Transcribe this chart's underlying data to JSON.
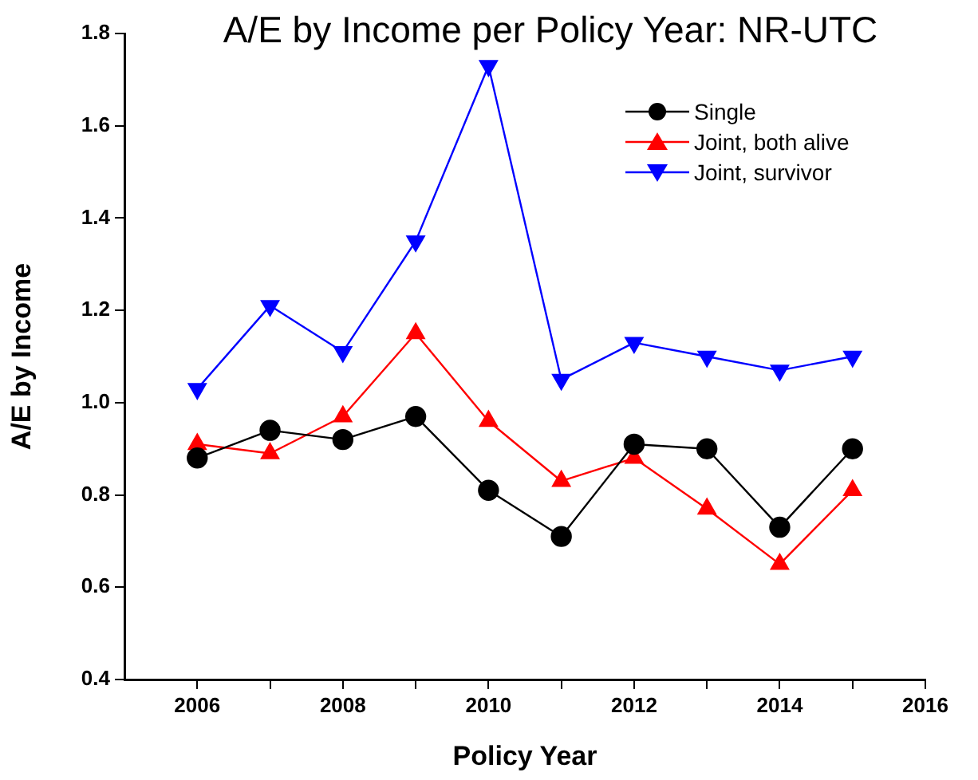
{
  "chart_data": {
    "type": "line",
    "title": "A/E by Income per Policy Year: NR-UTC",
    "xlabel": "Policy Year",
    "ylabel": "A/E by Income",
    "x": [
      2006,
      2007,
      2008,
      2009,
      2010,
      2011,
      2012,
      2013,
      2014,
      2015
    ],
    "series": [
      {
        "name": "Single",
        "color": "#000000",
        "marker": "circle",
        "values": [
          0.88,
          0.94,
          0.92,
          0.97,
          0.81,
          0.71,
          0.91,
          0.9,
          0.73,
          0.9
        ]
      },
      {
        "name": "Joint, both alive",
        "color": "#ff0000",
        "marker": "triangle",
        "values": [
          0.91,
          0.89,
          0.97,
          1.15,
          0.96,
          0.83,
          0.88,
          0.77,
          0.65,
          0.81
        ]
      },
      {
        "name": "Joint, survivor",
        "color": "#0000ff",
        "marker": "triangle-down",
        "values": [
          1.03,
          1.21,
          1.11,
          1.35,
          1.73,
          1.05,
          1.13,
          1.1,
          1.07,
          1.1
        ]
      }
    ],
    "xlim": [
      2005,
      2016
    ],
    "xticks": [
      2006,
      {
        "value": 2007,
        "label": null
      },
      2008,
      {
        "value": 2009,
        "label": null
      },
      2010,
      {
        "value": 2011,
        "label": null
      },
      2012,
      {
        "value": 2013,
        "label": null
      },
      2014,
      {
        "value": 2015,
        "label": null
      },
      2016
    ],
    "ylim": [
      0.4,
      1.8
    ],
    "yticks": [
      {
        "value": 0.4,
        "label": "0.4"
      },
      {
        "value": 0.6,
        "label": "0.6"
      },
      {
        "value": 0.8,
        "label": "0.8"
      },
      {
        "value": 1.0,
        "label": "1.0"
      },
      {
        "value": 1.2,
        "label": "1.2"
      },
      {
        "value": 1.4,
        "label": "1.4"
      },
      {
        "value": 1.6,
        "label": "1.6"
      },
      {
        "value": 1.8,
        "label": "1.8"
      }
    ],
    "grid": false,
    "legend": "top right",
    "line_style": "solid"
  }
}
